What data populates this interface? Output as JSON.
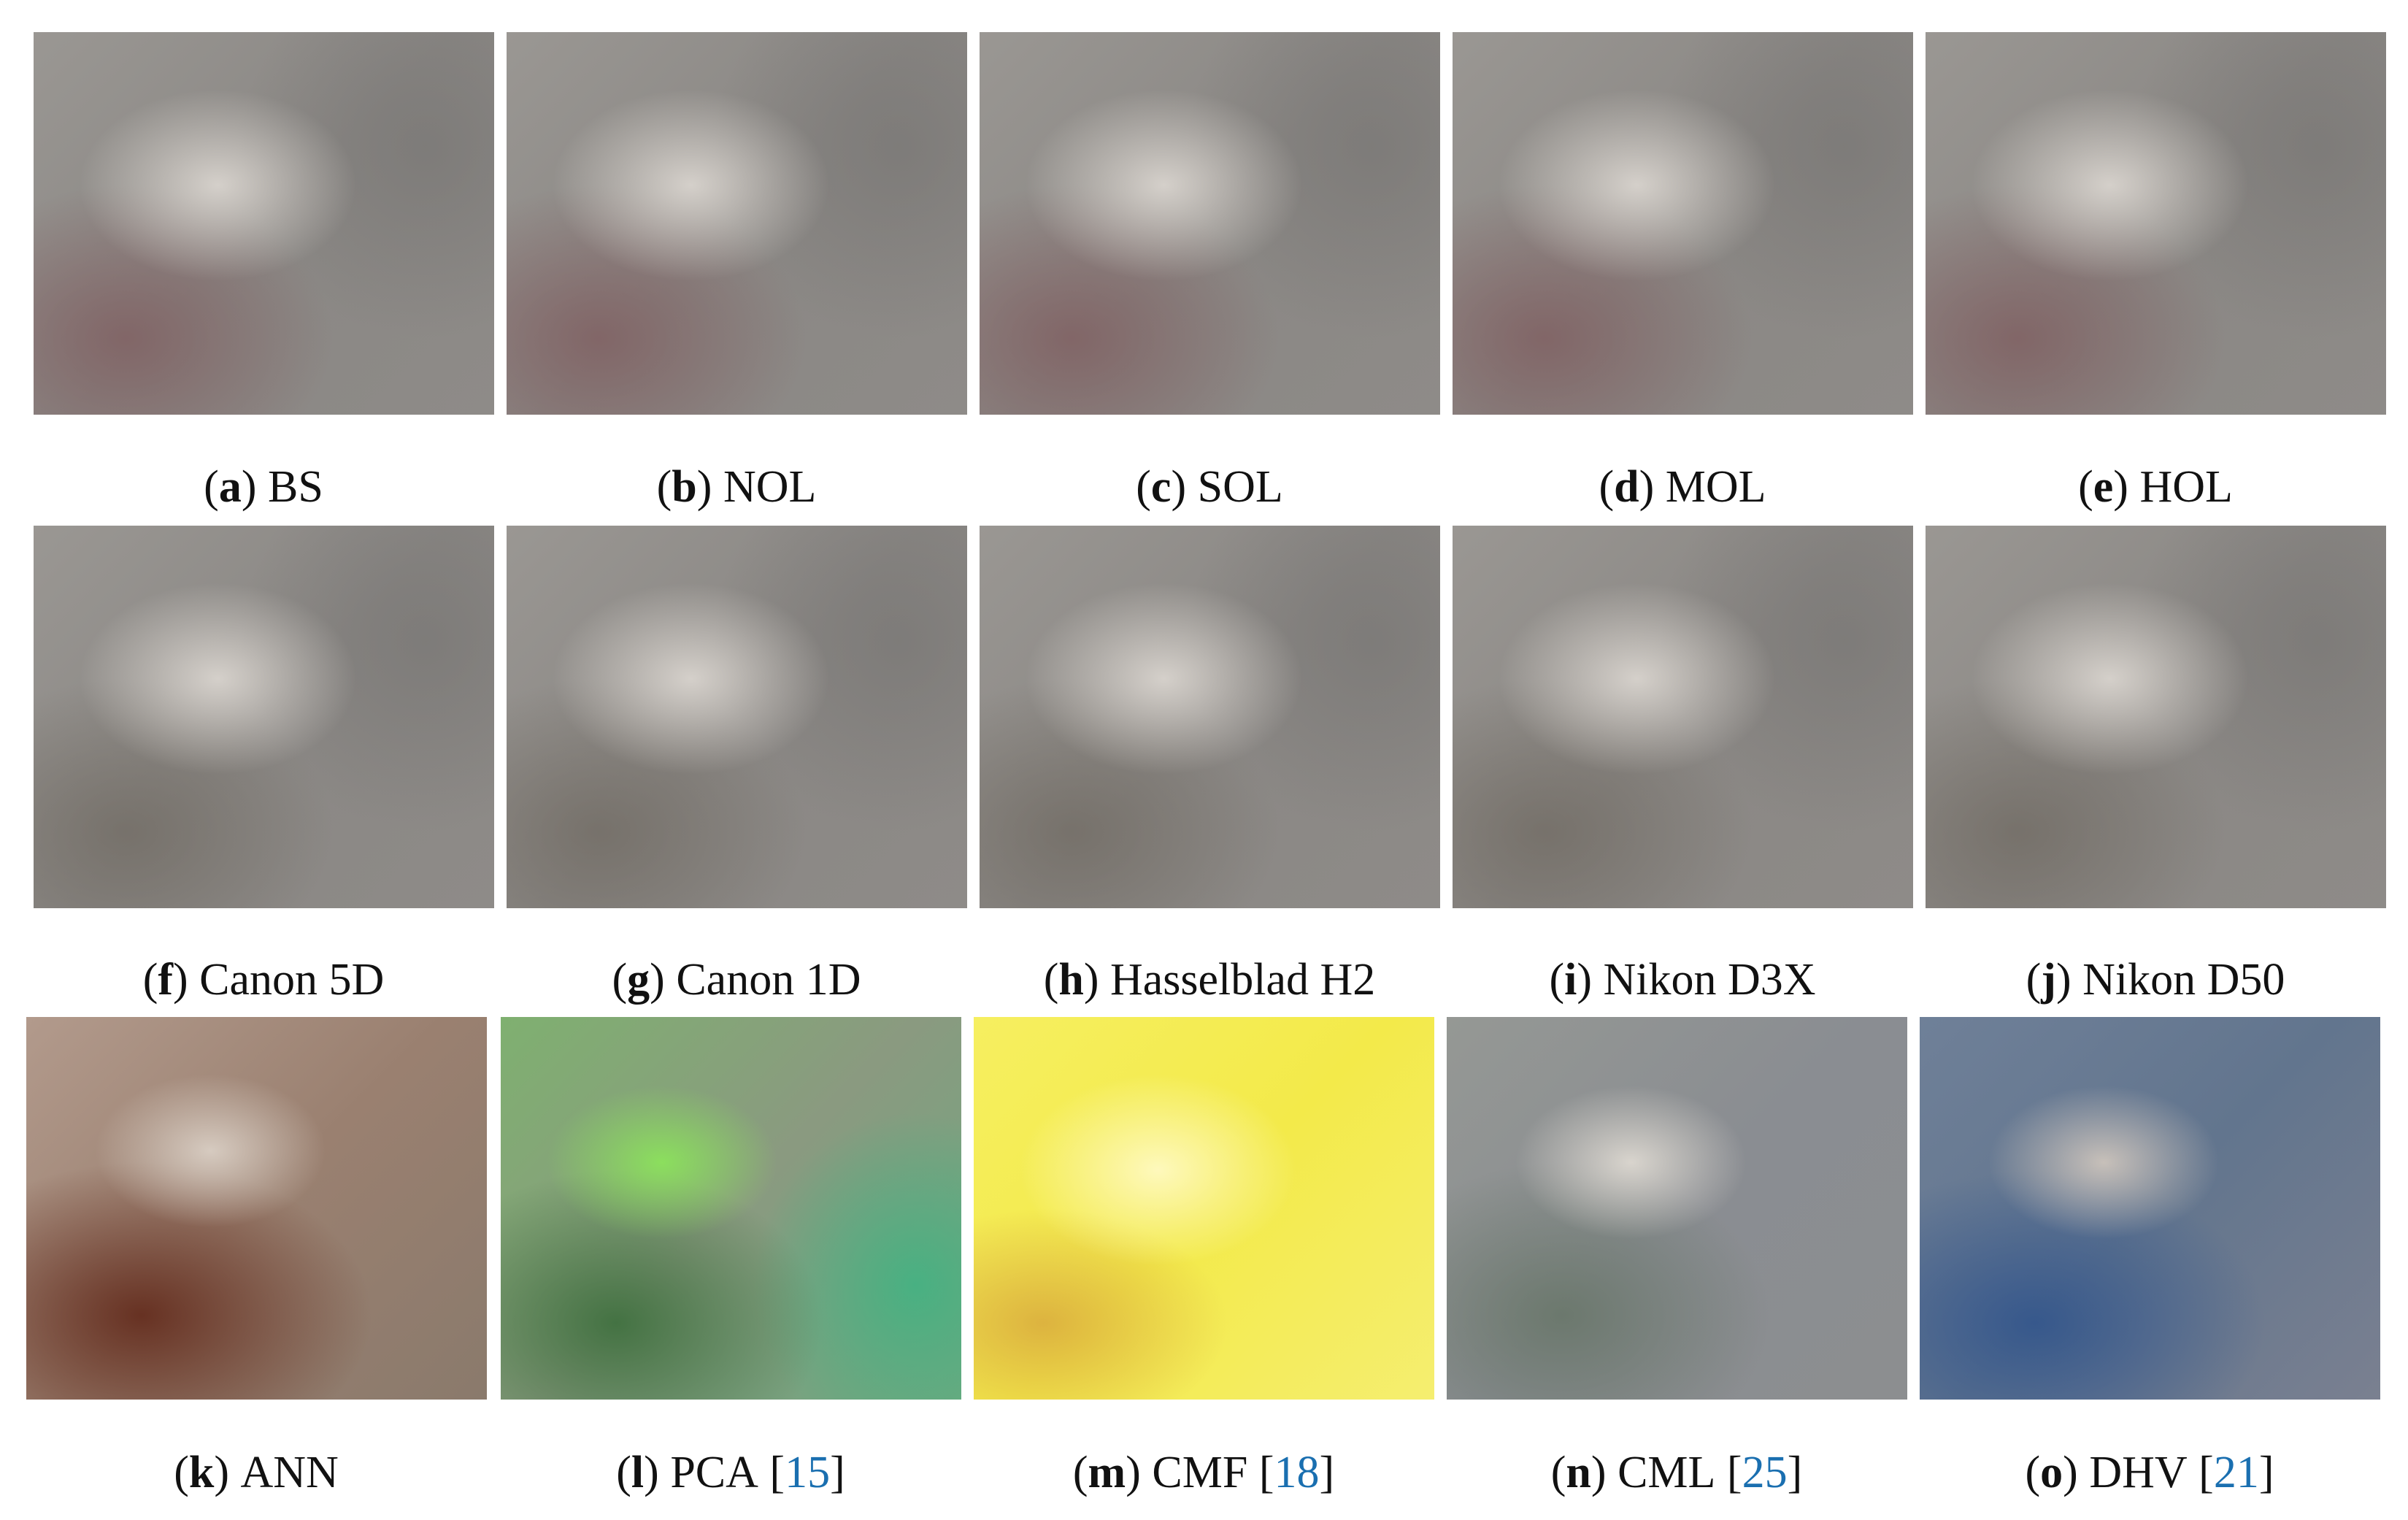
{
  "panels": [
    {
      "letter": "a",
      "name": "BS"
    },
    {
      "letter": "b",
      "name": "NOL"
    },
    {
      "letter": "c",
      "name": "SOL"
    },
    {
      "letter": "d",
      "name": "MOL"
    },
    {
      "letter": "e",
      "name": "HOL"
    },
    {
      "letter": "f",
      "name": "Canon 5D"
    },
    {
      "letter": "g",
      "name": "Canon 1D"
    },
    {
      "letter": "h",
      "name": "Hasselblad H2"
    },
    {
      "letter": "i",
      "name": "Nikon D3X"
    },
    {
      "letter": "j",
      "name": "Nikon D50"
    },
    {
      "letter": "k",
      "name": "ANN"
    },
    {
      "letter": "l",
      "name": "PCA",
      "cite": "15"
    },
    {
      "letter": "m",
      "name": "CMF",
      "cite": "18"
    },
    {
      "letter": "n",
      "name": "CML",
      "cite": "25"
    },
    {
      "letter": "o",
      "name": "DHV",
      "cite": "21"
    }
  ]
}
